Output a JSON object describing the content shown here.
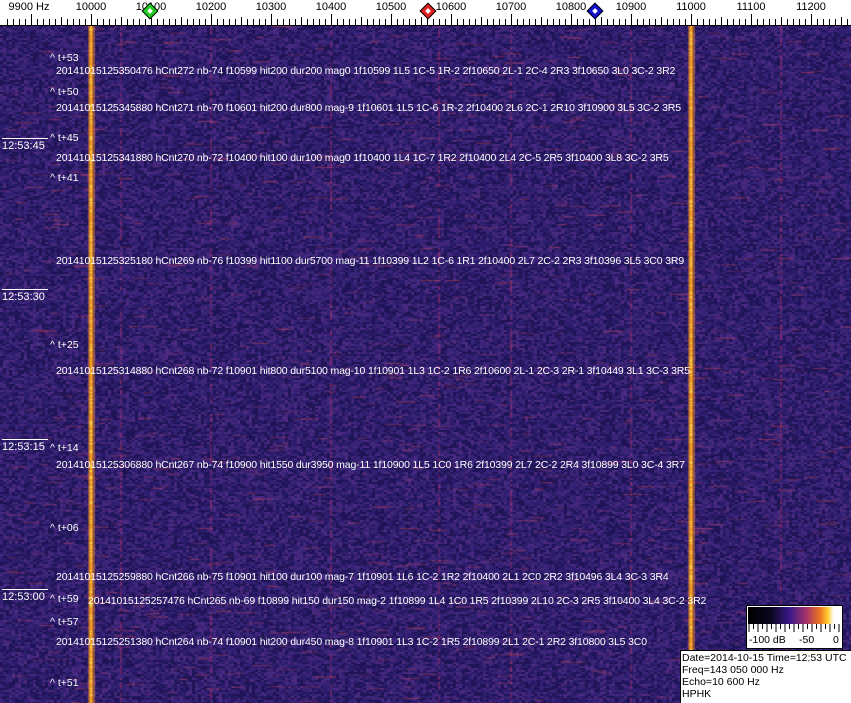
{
  "axis": {
    "labels": [
      "9900 Hz",
      "10000",
      "10100",
      "10200",
      "10300",
      "10400",
      "10500",
      "10600",
      "10700",
      "10800",
      "10900",
      "11000",
      "11100",
      "11200"
    ],
    "freqs": [
      9900,
      10000,
      10100,
      10200,
      10300,
      10400,
      10500,
      10600,
      10700,
      10800,
      10900,
      11000,
      11100,
      11200
    ]
  },
  "markers": [
    {
      "name": "green",
      "freq": 10098,
      "color": "#22cc22"
    },
    {
      "name": "red",
      "freq": 10562,
      "color": "#dd2222"
    },
    {
      "name": "blue",
      "freq": 10840,
      "color": "#1111cc"
    }
  ],
  "strong_lines_hz": [
    10000,
    11000
  ],
  "time_labels": [
    "12:53:45",
    "12:53:30",
    "12:53:15",
    "12:53:00"
  ],
  "time_marks": [
    "^ t+53",
    "^ t+50",
    "^ t+45",
    "^ t+41",
    "^ t+25",
    "^ t+14",
    "^ t+06",
    "^ t+59",
    "^ t+57",
    "^ t+51"
  ],
  "detections": [
    "20141015125350476 hCnt272 nb-74 f10599 hit200 dur200 mag0 1f10599 1L5 1C-5 1R-2 2f10650 2L-1 2C-4 2R3 3f10650 3L0 3C-2 3R2",
    "20141015125345880 hCnt271 nb-70 f10601 hit200 dur800 mag-9 1f10601 1L5 1C-6 1R-2 2f10400 2L6 2C-1 2R10 3f10900 3L5 3C-2 3R5",
    "20141015125341880 hCnt270 nb-72 f10400 hit100 dur100 mag0 1f10400 1L4 1C-7 1R2 2f10400 2L4 2C-5 2R5 3f10400 3L8 3C-2 3R5",
    "20141015125325180 hCnt269 nb-76 f10399 hit1100 dur5700 mag-11 1f10399 1L2 1C-6 1R1 2f10400 2L7 2C-2 2R3 3f10396 3L5 3C0 3R9",
    "20141015125314880 hCnt268 nb-72 f10901 hit800 dur5100 mag-10 1f10901 1L3 1C-2 1R6 2f10600 2L-1 2C-3 2R-1 3f10449 3L1 3C-3 3R5",
    "20141015125306880 hCnt267 nb-74 f10900 hit1550 dur3950 mag-11 1f10900 1L5 1C0 1R6 2f10399 2L7 2C-2 2R4 3f10899 3L0 3C-4 3R7",
    "20141015125259880 hCnt266 nb-75 f10901 hit100 dur100 mag-7 1f10901 1L6 1C-2 1R2 2f10400 2L1 2C0 2R2 3f10496 3L4 3C-3 3R4",
    "20141015125257476 hCnt265 nb-69 f10899 hit150 dur150 mag-2 1f10899 1L4 1C0 1R5 2f10399 2L10 2C-3 2R5 3f10400 3L4 3C-2 3R2",
    "20141015125251380 hCnt264 nb-74 f10901 hit200 dur450 mag-8 1f10901 1L3 1C-2 1R5 2f10899 2L1 2C-1 2R2 3f10800 3L5 3C0"
  ],
  "scale": {
    "labels": [
      "-100 dB",
      "-50",
      "0"
    ]
  },
  "info": {
    "date": "Date=2014-10-15 Time=12:53 UTC",
    "freq": "Freq=143 050 000 Hz",
    "echo": "Echo=10 600 Hz",
    "station": "HPHK"
  }
}
